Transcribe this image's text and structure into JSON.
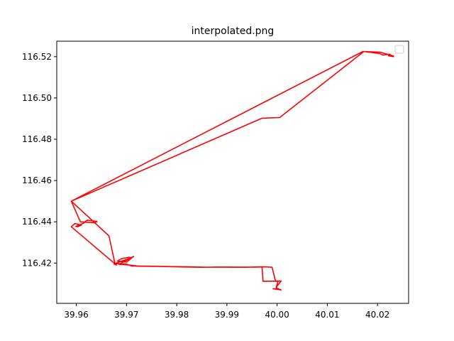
{
  "chart_data": {
    "type": "line",
    "title": "interpolated.png",
    "xlabel": "",
    "ylabel": "",
    "xlim": [
      39.9561,
      40.0262
    ],
    "ylim": [
      116.4005,
      116.5275
    ],
    "x_ticks": [
      39.96,
      39.97,
      39.98,
      39.99,
      40.0,
      40.01,
      40.02
    ],
    "x_tick_labels": [
      "39.96",
      "39.97",
      "39.98",
      "39.99",
      "40.00",
      "40.01",
      "40.02"
    ],
    "y_ticks": [
      116.42,
      116.44,
      116.46,
      116.48,
      116.5,
      116.52
    ],
    "y_tick_labels": [
      "116.42",
      "116.44",
      "116.46",
      "116.48",
      "116.50",
      "116.52"
    ],
    "grid": false,
    "legend": {
      "placement": "top-right",
      "entries": []
    },
    "series": [
      {
        "color": "#ff0000",
        "x": [
          40.0233,
          40.0205,
          40.0171,
          39.959,
          39.9608,
          39.9637,
          39.9641,
          39.9621,
          39.9615,
          39.9599,
          39.9602,
          39.961,
          39.9597,
          39.959,
          39.968,
          39.9675,
          39.971,
          39.9705,
          39.969,
          39.9682,
          39.97,
          39.9714,
          39.9685,
          39.97,
          39.9725,
          39.976,
          39.98,
          39.985,
          39.99,
          39.994,
          39.997,
          39.9972,
          40.0008,
          39.9998,
          40.0002,
          39.9992,
          40.0008,
          39.9998,
          40.0002,
          39.9997,
          39.999,
          39.9975,
          39.996,
          39.992,
          39.988,
          39.986,
          39.982,
          39.979,
          39.977,
          39.974,
          39.971,
          39.97,
          39.9683,
          39.9677,
          39.9665,
          39.959,
          39.997,
          40.0005,
          40.0173,
          40.0205,
          40.021,
          40.0225,
          40.0222,
          40.0233
        ],
        "y": [
          116.5202,
          116.5222,
          116.5225,
          116.45,
          116.44,
          116.4395,
          116.4402,
          116.4408,
          116.4394,
          116.4378,
          116.4376,
          116.4384,
          116.4392,
          116.4376,
          116.419,
          116.4196,
          116.4226,
          116.4228,
          116.4222,
          116.421,
          116.4205,
          116.4232,
          116.4194,
          116.4192,
          116.4185,
          116.4184,
          116.4182,
          116.418,
          116.4181,
          116.418,
          116.4182,
          116.4112,
          116.4113,
          116.4082,
          116.4072,
          116.4076,
          116.407,
          116.408,
          116.4112,
          116.4112,
          116.418,
          116.4182,
          116.4181,
          116.418,
          116.4181,
          116.418,
          116.4182,
          116.4183,
          116.4184,
          116.4185,
          116.4186,
          116.4195,
          116.4197,
          116.4197,
          116.4332,
          116.45,
          116.4902,
          116.4905,
          116.5225,
          116.5215,
          116.5208,
          116.5212,
          116.5204,
          116.52
        ]
      }
    ]
  }
}
